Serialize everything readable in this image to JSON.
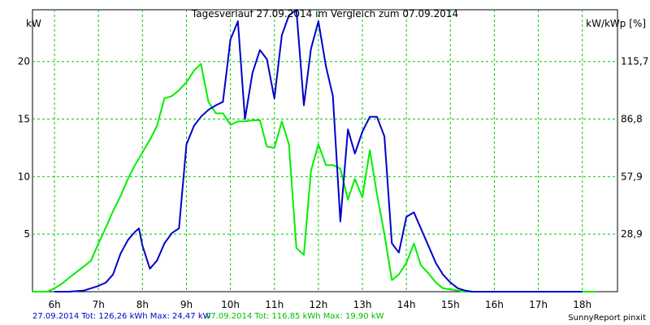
{
  "chart_data": {
    "type": "line",
    "title": "Tagesverlauf 27.09.2014 im Vergleich zum 07.09.2014",
    "ylabel_left": "kW",
    "ylabel_right": "kW/kWp [%]",
    "xlim": [
      5.5,
      18.8
    ],
    "ylim": [
      0,
      24.5
    ],
    "x_ticks": [
      6,
      7,
      8,
      9,
      10,
      11,
      12,
      13,
      14,
      15,
      16,
      17,
      18
    ],
    "x_tick_labels": [
      "6h",
      "7h",
      "8h",
      "9h",
      "10h",
      "11h",
      "12h",
      "13h",
      "14h",
      "15h",
      "16h",
      "17h",
      "18h"
    ],
    "y_ticks": [
      5,
      10,
      15,
      20
    ],
    "y_tick_labels": [
      "5",
      "10",
      "15",
      "20"
    ],
    "y_right_ticks": [
      5,
      10,
      15,
      20
    ],
    "y_right_tick_labels": [
      "28,9",
      "57,9",
      "86,8",
      "115,7"
    ],
    "grid": true,
    "grid_color": "#00cc00",
    "series": [
      {
        "name": "27.09.2014",
        "color": "#0000cc",
        "x": [
          6.0,
          6.33,
          6.67,
          7.0,
          7.17,
          7.33,
          7.5,
          7.67,
          7.83,
          7.92,
          8.0,
          8.17,
          8.33,
          8.5,
          8.67,
          8.83,
          9.0,
          9.17,
          9.33,
          9.5,
          9.67,
          9.83,
          10.0,
          10.17,
          10.33,
          10.5,
          10.67,
          10.83,
          11.0,
          11.17,
          11.33,
          11.5,
          11.67,
          11.83,
          12.0,
          12.17,
          12.33,
          12.5,
          12.67,
          12.83,
          13.0,
          13.17,
          13.33,
          13.5,
          13.67,
          13.83,
          14.0,
          14.17,
          14.33,
          14.5,
          14.67,
          14.83,
          15.0,
          15.17,
          15.33,
          15.5,
          15.67,
          15.83,
          16.0,
          16.17,
          16.33,
          16.5,
          16.67,
          16.83,
          17.0,
          17.17,
          17.33,
          17.5,
          17.67,
          17.83,
          18.0
        ],
        "y": [
          0,
          0,
          0.1,
          0.5,
          0.8,
          1.5,
          3.3,
          4.5,
          5.2,
          5.5,
          4.0,
          2.0,
          2.7,
          4.2,
          5.1,
          5.5,
          12.8,
          14.4,
          15.2,
          15.8,
          16.2,
          16.5,
          21.9,
          23.5,
          15.0,
          19.0,
          21.0,
          20.2,
          16.8,
          22.3,
          24.0,
          24.5,
          16.2,
          21.1,
          23.5,
          19.6,
          17.0,
          6.1,
          14.1,
          12.0,
          13.9,
          15.2,
          15.2,
          13.5,
          4.2,
          3.4,
          6.5,
          6.9,
          5.5,
          4.0,
          2.5,
          1.5,
          0.8,
          0.3,
          0.1,
          0,
          0,
          0,
          0,
          0,
          0,
          0,
          0,
          0,
          0,
          0,
          0,
          0,
          0,
          0,
          0
        ],
        "total_label": "27.09.2014 Tot: 126,26 kWh Max: 24,47 kW"
      },
      {
        "name": "07.09.2014",
        "color": "#00ee00",
        "x": [
          5.5,
          5.83,
          6.0,
          6.17,
          6.33,
          6.5,
          6.67,
          6.83,
          7.0,
          7.17,
          7.33,
          7.5,
          7.67,
          7.83,
          8.0,
          8.17,
          8.33,
          8.5,
          8.67,
          8.83,
          9.0,
          9.17,
          9.33,
          9.5,
          9.67,
          9.83,
          10.0,
          10.17,
          10.33,
          10.5,
          10.67,
          10.83,
          11.0,
          11.17,
          11.33,
          11.5,
          11.67,
          11.83,
          12.0,
          12.17,
          12.33,
          12.5,
          12.67,
          12.83,
          13.0,
          13.17,
          13.33,
          13.5,
          13.67,
          13.83,
          14.0,
          14.17,
          14.33,
          14.5,
          14.67,
          14.83,
          15.0,
          15.17,
          15.33,
          15.5,
          15.67,
          15.83,
          16.0,
          16.17,
          16.33,
          16.5,
          16.67,
          16.83,
          17.0,
          17.17,
          17.33,
          17.5,
          17.67,
          17.83,
          18.0,
          18.17,
          18.33
        ],
        "y": [
          0,
          0,
          0.3,
          0.7,
          1.2,
          1.7,
          2.2,
          2.7,
          4.2,
          5.6,
          7.0,
          8.3,
          9.8,
          11.0,
          12.1,
          13.2,
          14.4,
          16.8,
          17.0,
          17.5,
          18.2,
          19.2,
          19.8,
          16.5,
          15.5,
          15.5,
          14.5,
          14.8,
          14.8,
          14.9,
          14.9,
          12.6,
          12.5,
          14.8,
          12.8,
          3.8,
          3.2,
          10.5,
          12.8,
          11.0,
          11.0,
          10.7,
          8.0,
          9.8,
          8.2,
          12.3,
          8.5,
          5.0,
          1.0,
          1.5,
          2.5,
          4.2,
          2.3,
          1.6,
          0.8,
          0.3,
          0.2,
          0.1,
          0,
          0,
          0,
          0,
          0,
          0,
          0,
          0,
          0,
          0,
          0,
          0,
          0,
          0,
          0,
          0,
          0,
          0,
          0
        ],
        "total_label": "07.09.2014 Tot: 116,85 kWh Max: 19,90 kW"
      }
    ],
    "credit": "SunnyReport pinxit"
  }
}
